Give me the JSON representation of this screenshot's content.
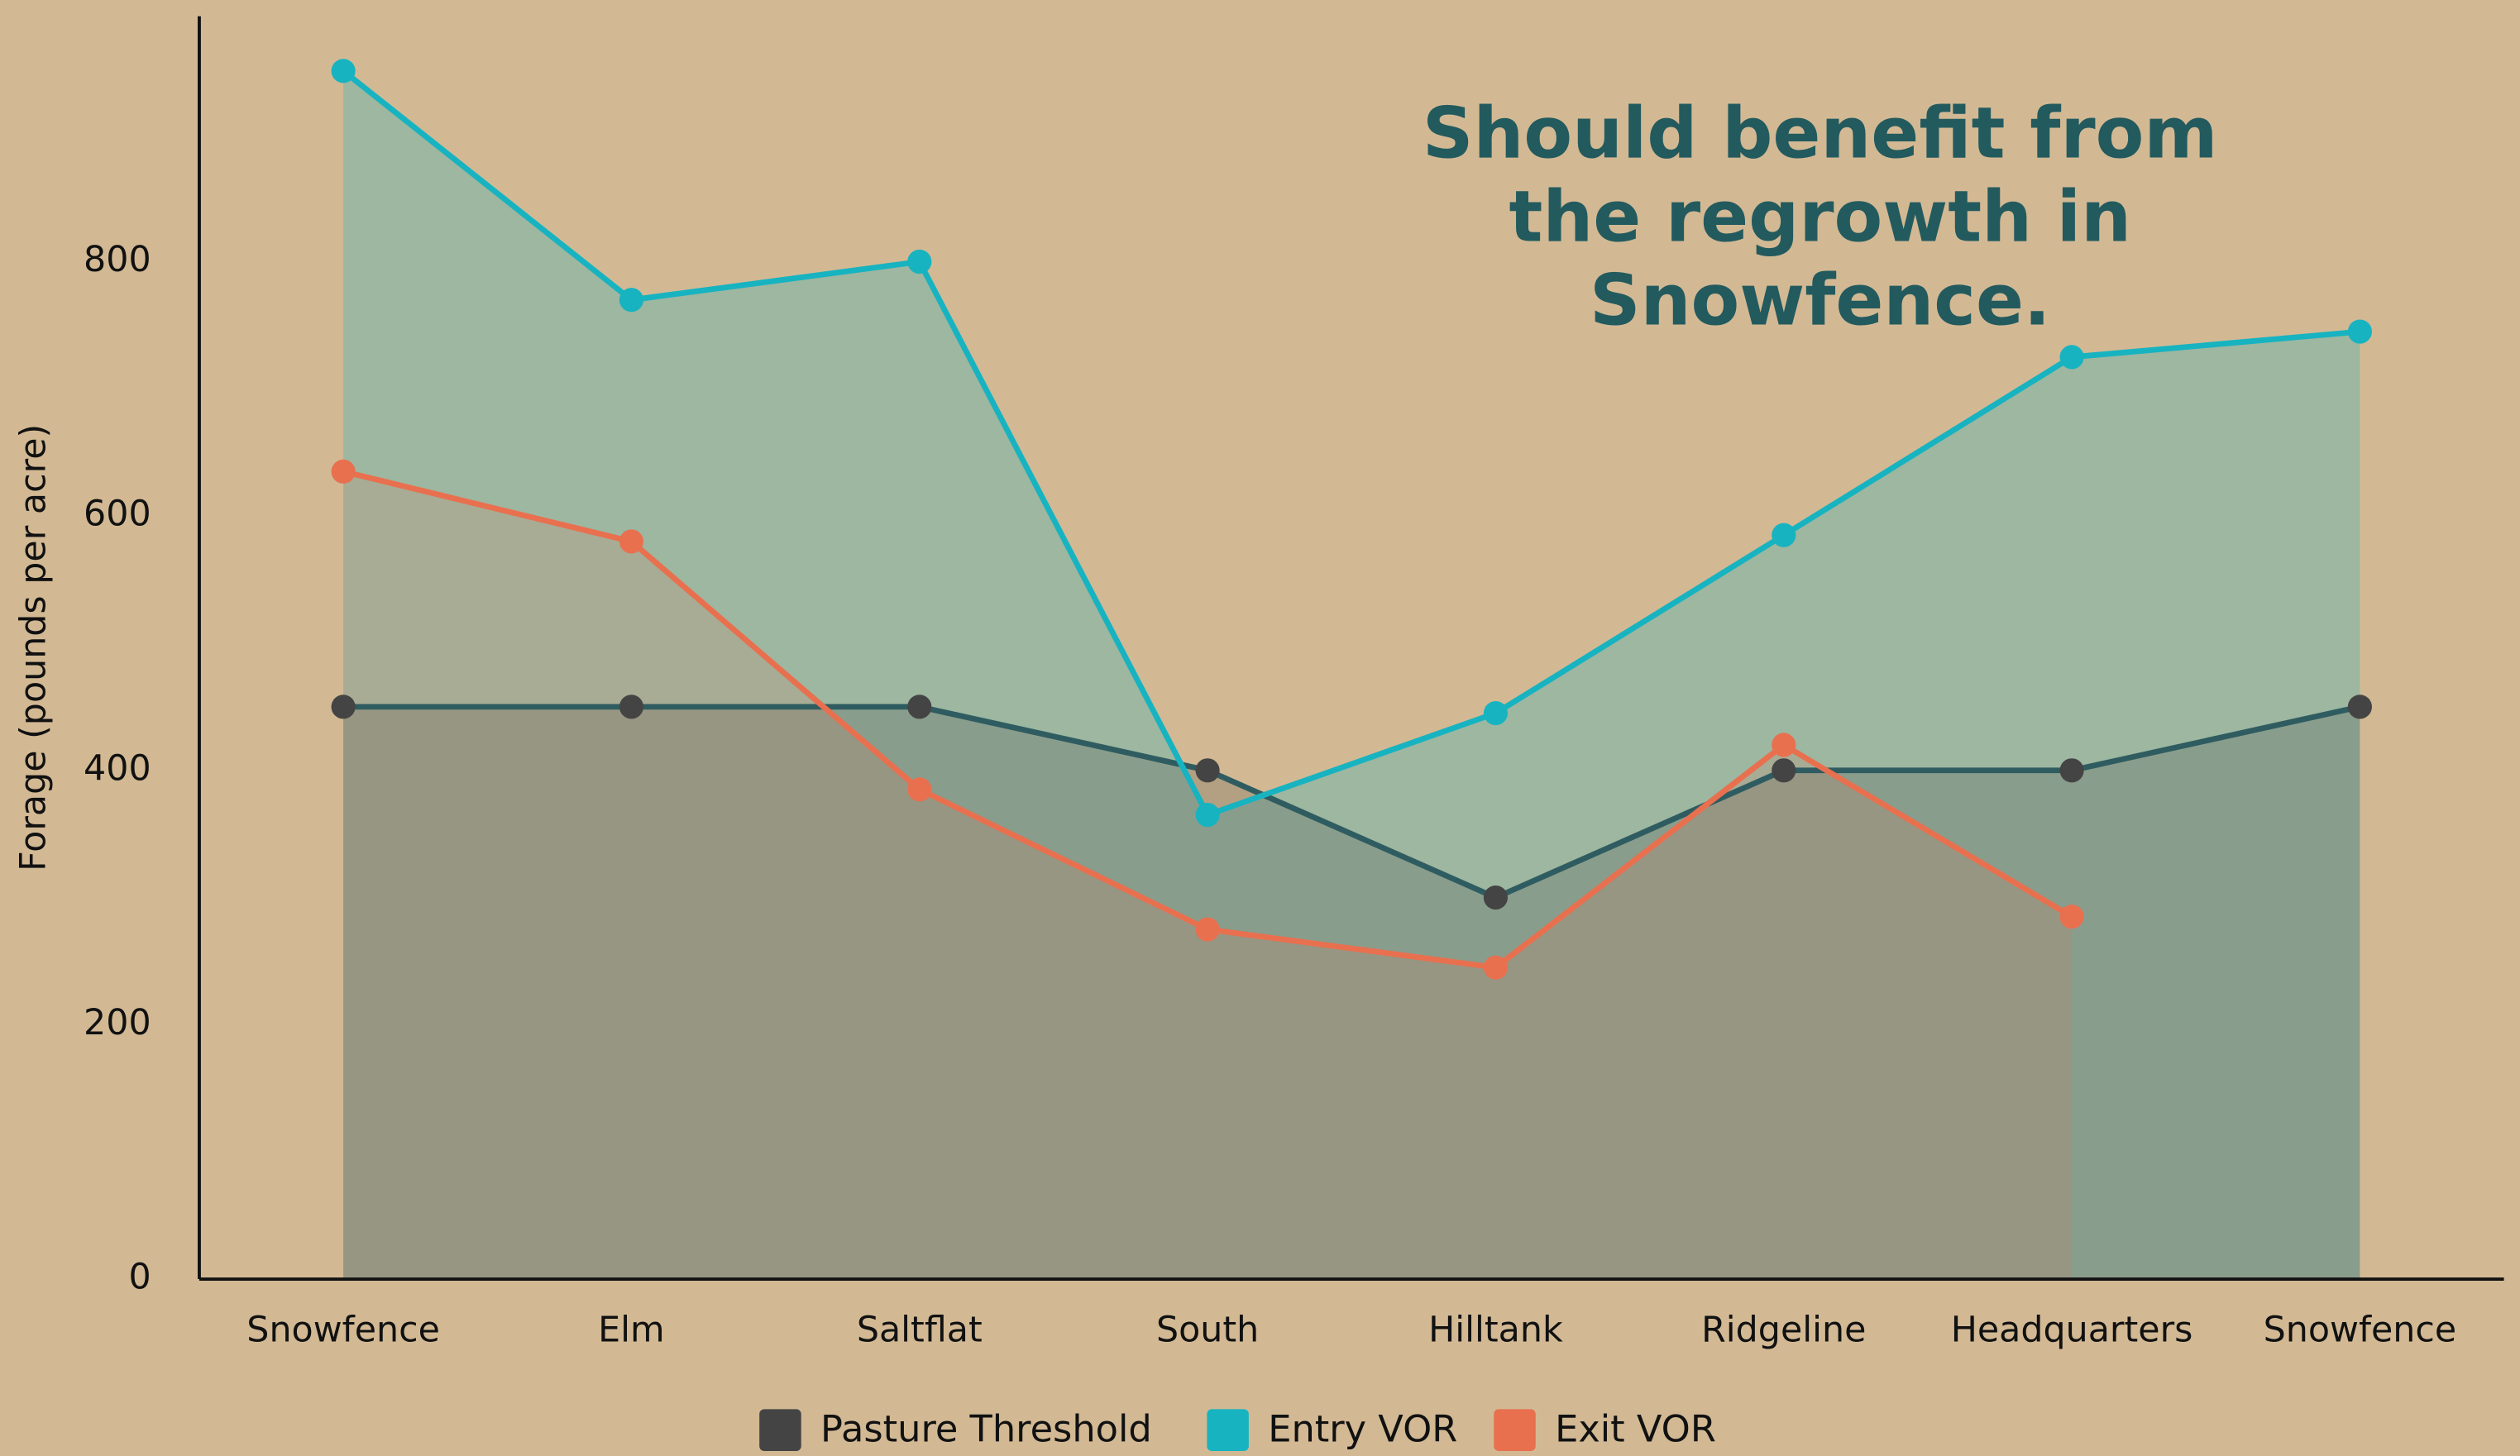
{
  "chart_data": {
    "type": "line",
    "annotation": "Should benefit from the regrowth in Snowfence.",
    "y_label": "Forage (pounds per acre)",
    "categories": [
      "Snowfence",
      "Elm",
      "Saltflat",
      "South",
      "Hilltank",
      "Ridgeline",
      "Headquarters",
      "Snowfence"
    ],
    "series": [
      {
        "name": "Pasture Threshold",
        "color": "#444444",
        "values": [
          450,
          450,
          450,
          400,
          300,
          400,
          400,
          450
        ]
      },
      {
        "name": "Entry VOR",
        "color": "#17b3c1",
        "values": [
          950,
          770,
          800,
          365,
          445,
          585,
          725,
          745
        ]
      },
      {
        "name": "Exit VOR",
        "color": "#e8704f",
        "values": [
          635,
          580,
          385,
          275,
          245,
          420,
          285,
          null
        ]
      }
    ],
    "ylim": [
      0,
      993
    ],
    "yticks": [
      0,
      200,
      400,
      600,
      800
    ],
    "grid": false,
    "legend": "bottom"
  }
}
